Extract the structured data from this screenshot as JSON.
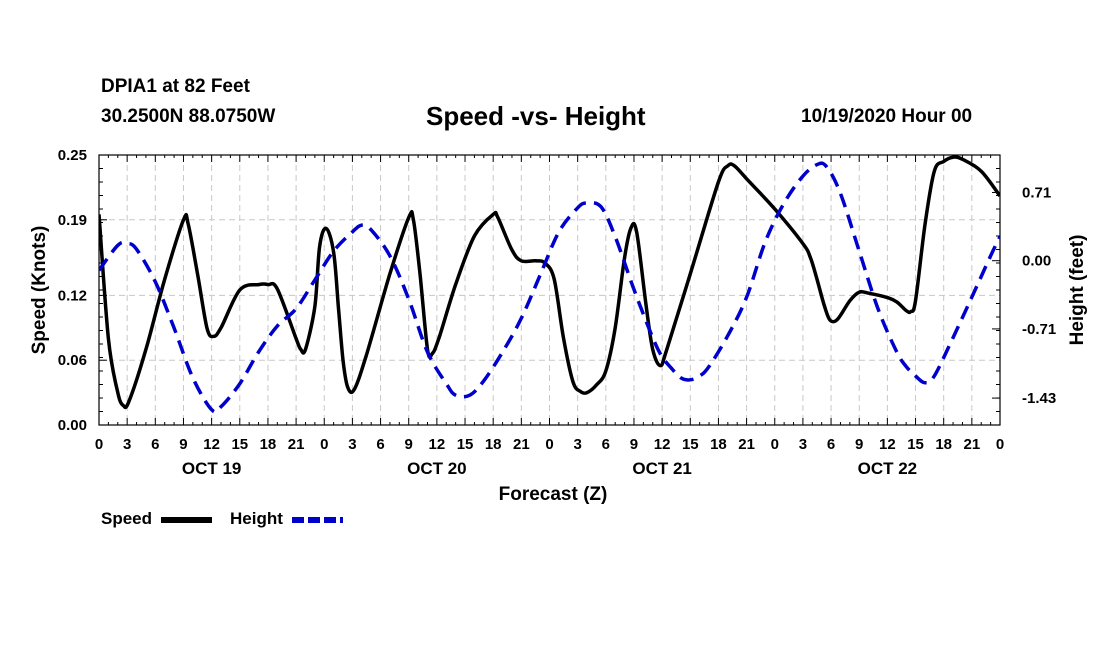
{
  "header": {
    "station": "DPIA1 at 82 Feet",
    "coords": "30.2500N 88.0750W",
    "title": "Speed -vs- Height",
    "datetime": "10/19/2020 Hour 00"
  },
  "chart_data": {
    "type": "line",
    "title": "Speed -vs- Height",
    "xlabel": "Forecast (Z)",
    "ylabel_left": "Speed (Knots)",
    "ylabel_right": "Height (feet)",
    "x_range_hours": [
      0,
      96
    ],
    "ylim_left": [
      0,
      0.25
    ],
    "ylim_right": [
      -1.71,
      1.1
    ],
    "left_ticks": [
      "0.00",
      "0.06",
      "0.12",
      "0.19",
      "0.25"
    ],
    "right_ticks": [
      "-1.43",
      "-0.71",
      "0.00",
      "0.71"
    ],
    "x_tick_labels": [
      "0",
      "3",
      "6",
      "9",
      "12",
      "15",
      "18",
      "21",
      "0",
      "3",
      "6",
      "9",
      "12",
      "15",
      "18",
      "21",
      "0",
      "3",
      "6",
      "9",
      "12",
      "15",
      "18",
      "21",
      "0",
      "3",
      "6",
      "9",
      "12",
      "15",
      "18",
      "21",
      "0"
    ],
    "day_labels": [
      "OCT 19",
      "OCT 20",
      "OCT 21",
      "OCT 22"
    ],
    "grid": true,
    "series": [
      {
        "name": "Speed",
        "color": "#000000",
        "dash": "solid",
        "points": [
          [
            0,
            0.195
          ],
          [
            1,
            0.08
          ],
          [
            2,
            0.03
          ],
          [
            2.6,
            0.018
          ],
          [
            3.2,
            0.022
          ],
          [
            5,
            0.07
          ],
          [
            7,
            0.135
          ],
          [
            9,
            0.19
          ],
          [
            9.5,
            0.186
          ],
          [
            10.5,
            0.14
          ],
          [
            11.5,
            0.09
          ],
          [
            12.2,
            0.082
          ],
          [
            13,
            0.09
          ],
          [
            15,
            0.125
          ],
          [
            17,
            0.13
          ],
          [
            18,
            0.13
          ],
          [
            19,
            0.126
          ],
          [
            21,
            0.08
          ],
          [
            21.5,
            0.07
          ],
          [
            22,
            0.07
          ],
          [
            23,
            0.11
          ],
          [
            23.5,
            0.165
          ],
          [
            24.2,
            0.182
          ],
          [
            25,
            0.16
          ],
          [
            25.5,
            0.11
          ],
          [
            26,
            0.06
          ],
          [
            26.5,
            0.035
          ],
          [
            27.2,
            0.033
          ],
          [
            28.5,
            0.065
          ],
          [
            31,
            0.14
          ],
          [
            33,
            0.192
          ],
          [
            33.5,
            0.19
          ],
          [
            34.2,
            0.14
          ],
          [
            35,
            0.07
          ],
          [
            35.5,
            0.066
          ],
          [
            36.2,
            0.08
          ],
          [
            38,
            0.13
          ],
          [
            40,
            0.175
          ],
          [
            42,
            0.195
          ],
          [
            42.5,
            0.192
          ],
          [
            44,
            0.162
          ],
          [
            45,
            0.152
          ],
          [
            46.5,
            0.152
          ],
          [
            47.5,
            0.15
          ],
          [
            48.5,
            0.135
          ],
          [
            49.5,
            0.08
          ],
          [
            50.5,
            0.04
          ],
          [
            51.3,
            0.031
          ],
          [
            52,
            0.03
          ],
          [
            53,
            0.037
          ],
          [
            54,
            0.05
          ],
          [
            55,
            0.09
          ],
          [
            56,
            0.155
          ],
          [
            56.7,
            0.183
          ],
          [
            57.3,
            0.178
          ],
          [
            58.3,
            0.11
          ],
          [
            59,
            0.07
          ],
          [
            59.8,
            0.055
          ],
          [
            60.5,
            0.07
          ],
          [
            63,
            0.14
          ],
          [
            66,
            0.225
          ],
          [
            67,
            0.24
          ],
          [
            67.7,
            0.24
          ],
          [
            69,
            0.228
          ],
          [
            72,
            0.2
          ],
          [
            75,
            0.168
          ],
          [
            75.8,
            0.155
          ],
          [
            76.5,
            0.135
          ],
          [
            77.3,
            0.11
          ],
          [
            77.9,
            0.097
          ],
          [
            78.7,
            0.098
          ],
          [
            80,
            0.115
          ],
          [
            81,
            0.123
          ],
          [
            82,
            0.122
          ],
          [
            84,
            0.118
          ],
          [
            85,
            0.114
          ],
          [
            86,
            0.106
          ],
          [
            86.5,
            0.105
          ],
          [
            87,
            0.115
          ],
          [
            88,
            0.185
          ],
          [
            89,
            0.235
          ],
          [
            90,
            0.244
          ],
          [
            91,
            0.248
          ],
          [
            92,
            0.246
          ],
          [
            94,
            0.235
          ],
          [
            96,
            0.212
          ]
        ]
      },
      {
        "name": "Height",
        "color": "#0000cc",
        "dash": "dashed",
        "points": [
          [
            0,
            -0.1
          ],
          [
            2,
            0.16
          ],
          [
            3,
            0.18
          ],
          [
            4,
            0.12
          ],
          [
            6,
            -0.22
          ],
          [
            8,
            -0.7
          ],
          [
            10,
            -1.22
          ],
          [
            12,
            -1.55
          ],
          [
            13,
            -1.52
          ],
          [
            15,
            -1.28
          ],
          [
            17,
            -0.95
          ],
          [
            19,
            -0.68
          ],
          [
            21,
            -0.5
          ],
          [
            23,
            -0.2
          ],
          [
            25,
            0.1
          ],
          [
            27,
            0.3
          ],
          [
            28,
            0.37
          ],
          [
            29,
            0.32
          ],
          [
            31,
            0.05
          ],
          [
            33,
            -0.4
          ],
          [
            35,
            -0.95
          ],
          [
            37,
            -1.28
          ],
          [
            38,
            -1.4
          ],
          [
            39.5,
            -1.4
          ],
          [
            41,
            -1.25
          ],
          [
            43,
            -0.95
          ],
          [
            45,
            -0.6
          ],
          [
            47,
            -0.15
          ],
          [
            49,
            0.3
          ],
          [
            51,
            0.55
          ],
          [
            52,
            0.6
          ],
          [
            53.5,
            0.56
          ],
          [
            55,
            0.25
          ],
          [
            57,
            -0.3
          ],
          [
            59,
            -0.8
          ],
          [
            60,
            -1.0
          ],
          [
            61,
            -1.12
          ],
          [
            62,
            -1.22
          ],
          [
            63,
            -1.24
          ],
          [
            64,
            -1.2
          ],
          [
            65,
            -1.1
          ],
          [
            67,
            -0.78
          ],
          [
            69,
            -0.38
          ],
          [
            71,
            0.2
          ],
          [
            73,
            0.6
          ],
          [
            75,
            0.88
          ],
          [
            76.5,
            1.0
          ],
          [
            77.5,
            0.98
          ],
          [
            79,
            0.7
          ],
          [
            81,
            0.1
          ],
          [
            83,
            -0.5
          ],
          [
            85,
            -0.95
          ],
          [
            86,
            -1.1
          ],
          [
            87,
            -1.2
          ],
          [
            88,
            -1.27
          ],
          [
            89,
            -1.2
          ],
          [
            91,
            -0.8
          ],
          [
            93,
            -0.38
          ],
          [
            95,
            0.05
          ],
          [
            96,
            0.25
          ]
        ]
      }
    ]
  },
  "legend": {
    "speed_label": "Speed",
    "height_label": "Height"
  }
}
